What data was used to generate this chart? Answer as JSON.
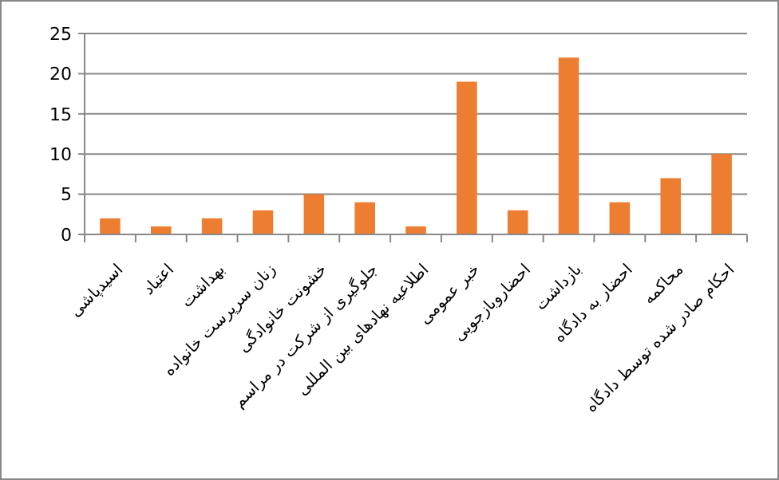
{
  "chart_data": {
    "type": "bar",
    "categories": [
      "اسیدپاشی",
      "اعتیاد",
      "بهداشت",
      "زنان سرپرست خانواده",
      "خشونت خانوادگی",
      "جلوگیری از شرکت در مراسم",
      "اطلاعیه نهادهای بین المللی",
      "خبر عمومی",
      "احضاروبازجویی",
      "بازداشت",
      "احضار به دادگاه",
      "محاکمه",
      "احکام صادر شده توسط دادگاه"
    ],
    "values": [
      2,
      1,
      2,
      3,
      5,
      4,
      1,
      19,
      3,
      22,
      4,
      7,
      10
    ],
    "color": "#ed7d31",
    "ylim": [
      0,
      25
    ],
    "yticks": [
      0,
      5,
      10,
      15,
      20,
      25
    ],
    "grid": true
  }
}
